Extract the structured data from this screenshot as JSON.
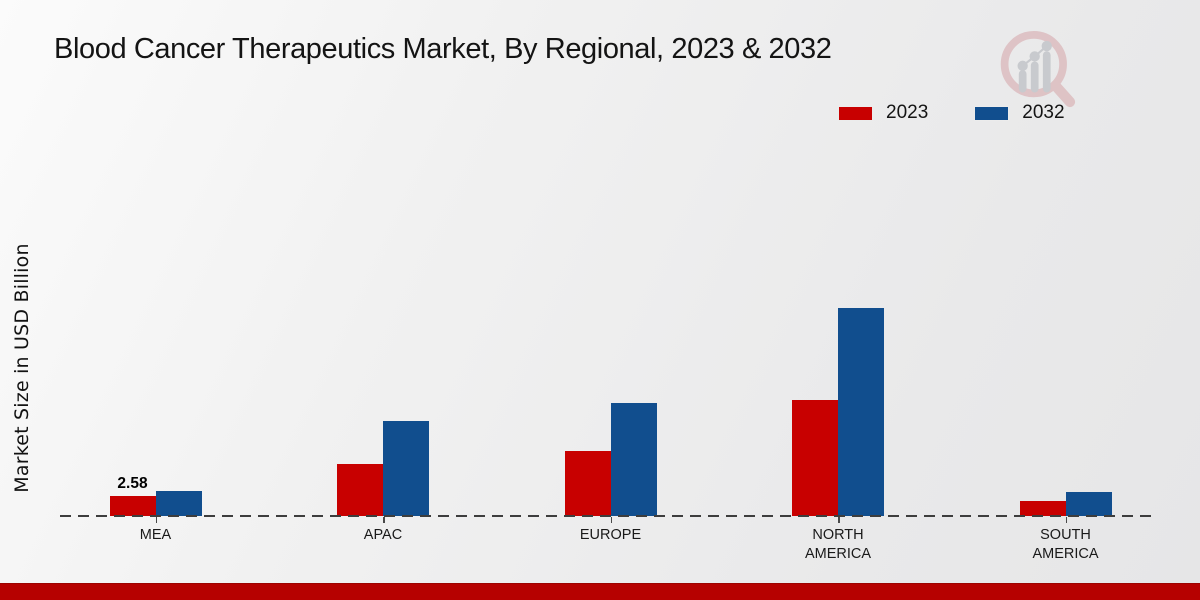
{
  "title": "Blood Cancer Therapeutics Market, By Regional, 2023 & 2032",
  "y_axis_label": "Market Size in USD Billion",
  "legend": {
    "position": "top-right",
    "items": [
      {
        "label": "2023",
        "color": "#c80000"
      },
      {
        "label": "2032",
        "color": "#114e8e"
      }
    ]
  },
  "watermark_icon": "magnifier-bar-chart-logo",
  "footer": {
    "strip_color": "#b60100"
  },
  "chart_data": {
    "type": "bar",
    "title": "Blood Cancer Therapeutics Market, By Regional, 2023 & 2032",
    "categories": [
      "MEA",
      "APAC",
      "EUROPE",
      "NORTH AMERICA",
      "SOUTH AMERICA"
    ],
    "series": [
      {
        "name": "2023",
        "color": "#c80000",
        "values": [
          2.58,
          6.6,
          8.2,
          14.7,
          1.9
        ]
      },
      {
        "name": "2032",
        "color": "#114e8e",
        "values": [
          3.2,
          12.0,
          14.3,
          26.3,
          3.1
        ]
      }
    ],
    "value_labels": [
      {
        "series": "2023",
        "category": "MEA",
        "text": "2.58"
      }
    ],
    "xlabel": "",
    "ylabel": "Market Size in USD Billion",
    "ylim": [
      0,
      30
    ],
    "y_axis_visible": false,
    "grid": false,
    "baseline_style": "dashed",
    "legend_position": "top-right"
  }
}
